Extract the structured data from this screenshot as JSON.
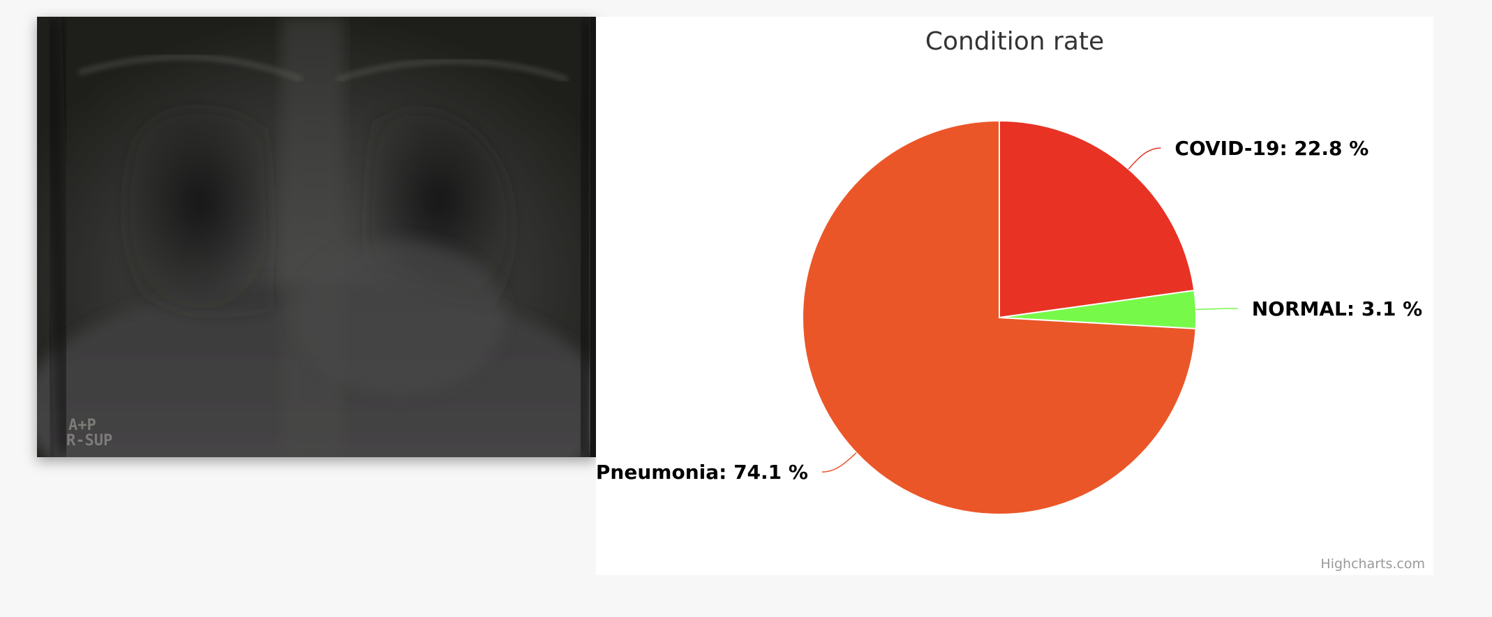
{
  "image": {
    "marker_line1": "A+P",
    "marker_line2": "R-SUP"
  },
  "chart_data": {
    "type": "pie",
    "title": "Condition rate",
    "slices": [
      {
        "name": "COVID-19",
        "value": 22.8,
        "color": "#e83224",
        "label": "COVID-19: 22.8 %"
      },
      {
        "name": "NORMAL",
        "value": 3.1,
        "color": "#77f94a",
        "label": "NORMAL: 3.1 %"
      },
      {
        "name": "Pneumonia",
        "value": 74.1,
        "color": "#eb5629",
        "label": "Pneumonia: 74.1 %"
      }
    ],
    "credits": "Highcharts.com"
  }
}
